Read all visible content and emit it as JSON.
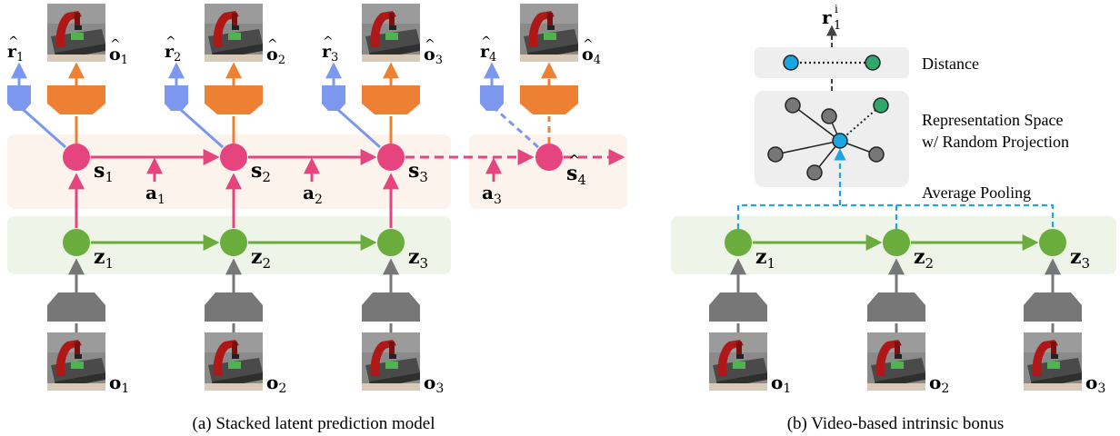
{
  "panel_a": {
    "caption": "(a)  Stacked latent prediction model",
    "s_nodes": [
      {
        "base": "s",
        "sub": "1",
        "hat": false
      },
      {
        "base": "s",
        "sub": "2",
        "hat": false
      },
      {
        "base": "s",
        "sub": "3",
        "hat": false
      },
      {
        "base": "s",
        "sub": "4",
        "hat": true
      }
    ],
    "z_nodes": [
      {
        "base": "z",
        "sub": "1"
      },
      {
        "base": "z",
        "sub": "2"
      },
      {
        "base": "z",
        "sub": "3"
      }
    ],
    "actions": [
      {
        "base": "a",
        "sub": "1"
      },
      {
        "base": "a",
        "sub": "2"
      },
      {
        "base": "a",
        "sub": "3"
      }
    ],
    "rewards": [
      {
        "base": "r",
        "sub": "1"
      },
      {
        "base": "r",
        "sub": "2"
      },
      {
        "base": "r",
        "sub": "3"
      },
      {
        "base": "r",
        "sub": "4"
      }
    ],
    "pred_obs": [
      {
        "base": "o",
        "sub": "1"
      },
      {
        "base": "o",
        "sub": "2"
      },
      {
        "base": "o",
        "sub": "3"
      },
      {
        "base": "o",
        "sub": "4"
      }
    ],
    "input_obs": [
      {
        "base": "o",
        "sub": "1"
      },
      {
        "base": "o",
        "sub": "2"
      },
      {
        "base": "o",
        "sub": "3"
      }
    ]
  },
  "panel_b": {
    "caption": "(b)  Video-based intrinsic bonus",
    "reward_label": {
      "base": "r",
      "sub": "1",
      "sup": "i"
    },
    "distance_label": "Distance",
    "repr_label_line1": "Representation Space",
    "repr_label_line2": "w/ Random Projection",
    "pooling_label": "Average Pooling",
    "z_nodes": [
      {
        "base": "z",
        "sub": "1"
      },
      {
        "base": "z",
        "sub": "2"
      },
      {
        "base": "z",
        "sub": "3"
      }
    ],
    "input_obs": [
      {
        "base": "o",
        "sub": "1"
      },
      {
        "base": "o",
        "sub": "2"
      },
      {
        "base": "o",
        "sub": "3"
      }
    ]
  },
  "colors": {
    "pink": "#e6447f",
    "green": "#6aad3d",
    "orange": "#ee8033",
    "blue": "#7b98ee",
    "gray": "#777777",
    "cyan": "#1aa6e0",
    "teal": "#2ea86b",
    "pink_band": "#fbf3ec",
    "green_band": "#eef4e8",
    "box_gray": "#eeeeee"
  }
}
